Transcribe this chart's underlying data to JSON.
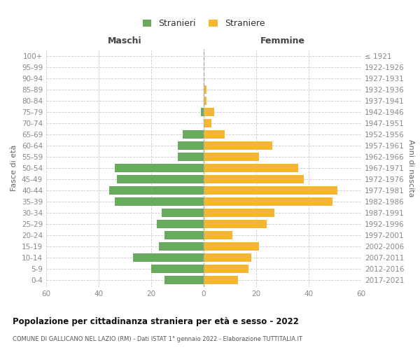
{
  "age_groups": [
    "0-4",
    "5-9",
    "10-14",
    "15-19",
    "20-24",
    "25-29",
    "30-34",
    "35-39",
    "40-44",
    "45-49",
    "50-54",
    "55-59",
    "60-64",
    "65-69",
    "70-74",
    "75-79",
    "80-84",
    "85-89",
    "90-94",
    "95-99",
    "100+"
  ],
  "birth_years": [
    "2017-2021",
    "2012-2016",
    "2007-2011",
    "2002-2006",
    "1997-2001",
    "1992-1996",
    "1987-1991",
    "1982-1986",
    "1977-1981",
    "1972-1976",
    "1967-1971",
    "1962-1966",
    "1957-1961",
    "1952-1956",
    "1947-1951",
    "1942-1946",
    "1937-1941",
    "1932-1936",
    "1927-1931",
    "1922-1926",
    "≤ 1921"
  ],
  "males": [
    15,
    20,
    27,
    17,
    15,
    18,
    16,
    34,
    36,
    33,
    34,
    10,
    10,
    8,
    0,
    1,
    0,
    0,
    0,
    0,
    0
  ],
  "females": [
    13,
    17,
    18,
    21,
    11,
    24,
    27,
    49,
    51,
    38,
    36,
    21,
    26,
    8,
    3,
    4,
    1,
    1,
    0,
    0,
    0
  ],
  "male_color": "#6aaa5e",
  "female_color": "#f5b731",
  "bar_height": 0.75,
  "xlim": 60,
  "title": "Popolazione per cittadinanza straniera per età e sesso - 2022",
  "subtitle": "COMUNE DI GALLICANO NEL LAZIO (RM) - Dati ISTAT 1° gennaio 2022 - Elaborazione TUTTITALIA.IT",
  "header_left": "Maschi",
  "header_right": "Femmine",
  "ylabel_left": "Fasce di età",
  "ylabel_right": "Anni di nascita",
  "legend_male": "Stranieri",
  "legend_female": "Straniere",
  "background_color": "#ffffff",
  "grid_color": "#cccccc",
  "axis_label_color": "#666666",
  "tick_label_color": "#888888"
}
